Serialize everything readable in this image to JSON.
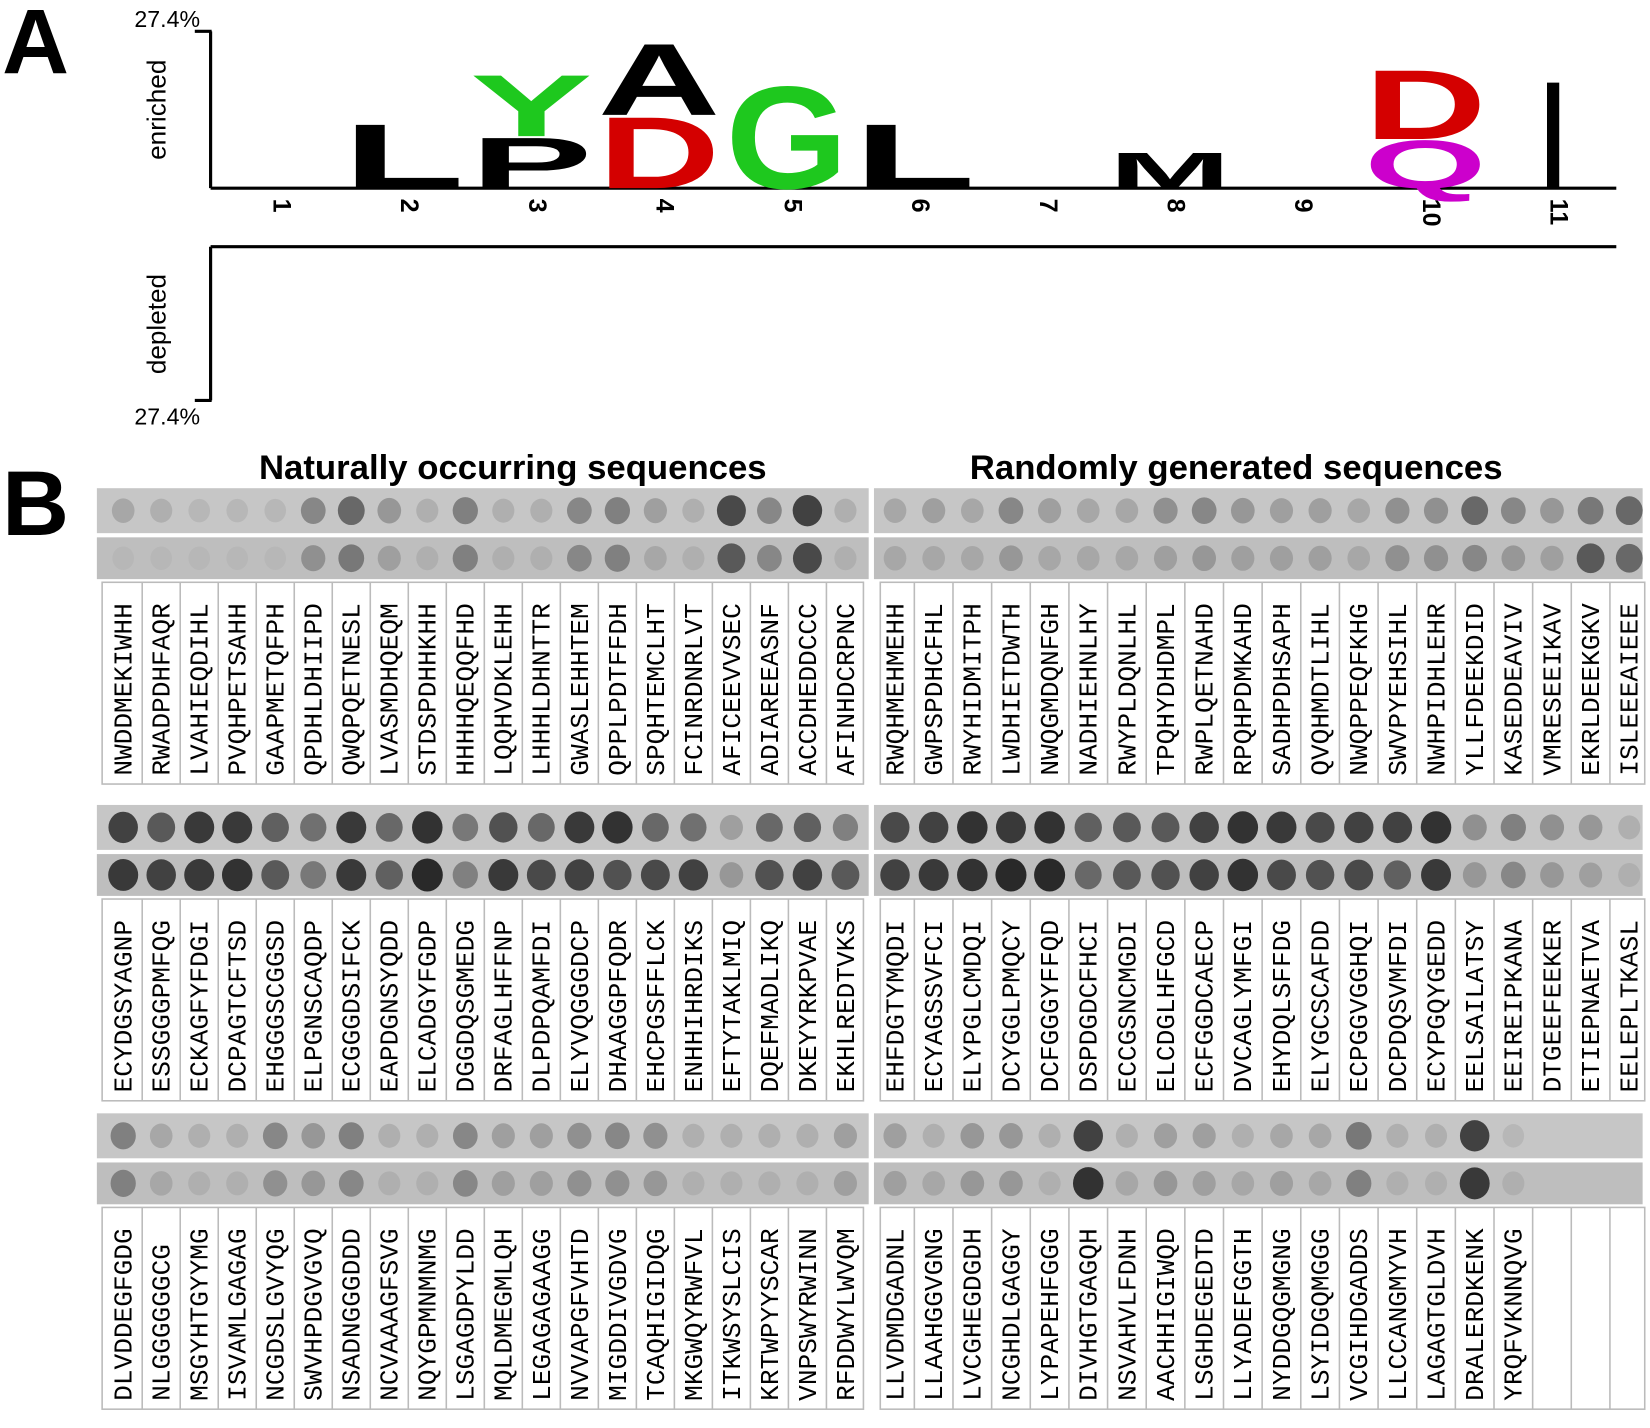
{
  "panel_a": {
    "label": "A",
    "enriched_label": "enriched",
    "depleted_label": "depleted",
    "ylim": [
      0,
      27.4
    ],
    "enriched_tick": {
      "value": 27.4,
      "label": "27.4%"
    },
    "depleted_tick": {
      "value": 27.4,
      "label": "27.4%"
    },
    "positions": [
      "1",
      "2",
      "3",
      "4",
      "5",
      "6",
      "7",
      "8",
      "9",
      "10",
      "11"
    ],
    "stacks": [
      {
        "letters": []
      },
      {
        "letters": [
          {
            "letter": "L",
            "color": "#000000",
            "value": 11.5
          }
        ]
      },
      {
        "letters": [
          {
            "letter": "P",
            "color": "#000000",
            "value": 9.1
          },
          {
            "letter": "Y",
            "color": "#1ec81e",
            "value": 11.0
          }
        ]
      },
      {
        "letters": [
          {
            "letter": "D",
            "color": "#d40000",
            "value": 12.8
          },
          {
            "letter": "A",
            "color": "#000000",
            "value": 12.8
          }
        ]
      },
      {
        "letters": [
          {
            "letter": "G",
            "color": "#1ec81e",
            "value": 18.3
          }
        ]
      },
      {
        "letters": [
          {
            "letter": "L",
            "color": "#000000",
            "value": 11.5
          }
        ]
      },
      {
        "letters": []
      },
      {
        "letters": [
          {
            "letter": "M",
            "color": "#000000",
            "value": 6.4
          }
        ]
      },
      {
        "letters": []
      },
      {
        "letters": [
          {
            "letter": "Q",
            "color": "#cc00cc",
            "value": 8.6
          },
          {
            "letter": "D",
            "color": "#d40000",
            "value": 12.4
          }
        ]
      },
      {
        "letters": [
          {
            "letter": "I",
            "color": "#000000",
            "value": 19.2
          }
        ]
      }
    ]
  },
  "panel_b": {
    "label": "B",
    "titles": [
      "Naturally occurring sequences",
      "Randomly generated sequences"
    ],
    "blots": [
      {
        "sequences": [
          "NWDDMEKIWHH",
          "RWADPDHFAQR",
          "LVAHIEQDIHL",
          "PVQHPETSAHH",
          "GAAPMETQFPH",
          "QPDHLDHIIPD",
          "QWQPQETNESL",
          "LVASMDHQEQM",
          "STDSPDHHKHH",
          "HHHHQEQQFHD",
          "LQQHVDKLEHH",
          "LHHHLDHNTTR",
          "GWASLEHHTEM",
          "QPPLPDTFFDH",
          "SPQHTEMCLHT",
          "FCINRDNRLVT",
          "AFICEEVVSEC",
          "ADIAREEASNF",
          "ACCDHEDDCCC",
          "AFINHDCRPNC"
        ],
        "spots": [
          [
            15,
            10,
            5,
            5,
            5,
            35,
            55,
            25,
            10,
            40,
            10,
            10,
            35,
            40,
            20,
            10,
            75,
            35,
            80,
            10
          ],
          [
            5,
            5,
            5,
            5,
            5,
            30,
            45,
            20,
            10,
            40,
            10,
            10,
            35,
            40,
            15,
            10,
            65,
            35,
            75,
            10
          ]
        ]
      },
      {
        "sequences": [
          "RWQHMEHMEHH",
          "GWPSPDHCFHL",
          "RWYHIDMITPH",
          "LWDHIETDWTH",
          "NWQGMDQNFGH",
          "NADHIEHNLHY",
          "RWYPLDQNLHL",
          "TPQHYDHDMPL",
          "RWPLQETNAHD",
          "RPQHPDMKAHD",
          "SADHPDHSAPH",
          "QVQHMDTLIHL",
          "NWQPPEQFKHG",
          "SWVPYEHSIHL",
          "NWHPIDHLEHR",
          "YLLFDEEKDID",
          "KASEDDEAVIV",
          "VMRESEEIKAV",
          "EKRLDEEKGKV",
          "ISLEEEAIEEE"
        ],
        "spots": [
          [
            15,
            20,
            15,
            35,
            20,
            15,
            15,
            30,
            35,
            25,
            20,
            20,
            15,
            30,
            30,
            55,
            35,
            25,
            45,
            55
          ],
          [
            15,
            15,
            15,
            25,
            15,
            15,
            15,
            20,
            25,
            20,
            20,
            20,
            15,
            30,
            30,
            35,
            25,
            20,
            65,
            55
          ]
        ]
      },
      {
        "sequences": [
          "ECYDGSYAGNP",
          "ESSGGGPMFQG",
          "ECKAGFYFDGI",
          "DCPAGTCFTSD",
          "EHGGGSCGGSD",
          "ELPGNSCAQDP",
          "ECGGGDSIFCK",
          "EAPDGNSYQDD",
          "ELCADGYFGDP",
          "DGGDQSGMEDG",
          "DRFAGLHFFNP",
          "DLPDPQAMFDI",
          "ELYVQGGGDCP",
          "DHAAGGPFQDR",
          "EHCPGSFFLCK",
          "ENHHIHRDIKS",
          "EFTYTAKLMIQ",
          "DQEFMADLIKQ",
          "DKEYYRKPVAE",
          "EKHLREDTVKS"
        ],
        "spots": [
          [
            80,
            65,
            85,
            85,
            60,
            50,
            85,
            55,
            90,
            45,
            70,
            55,
            85,
            90,
            55,
            50,
            20,
            55,
            60,
            40
          ],
          [
            85,
            80,
            85,
            90,
            65,
            45,
            85,
            60,
            95,
            40,
            85,
            75,
            80,
            70,
            75,
            80,
            25,
            70,
            80,
            65
          ]
        ]
      },
      {
        "sequences": [
          "EHFDGTYMQDI",
          "ECYAGSSVFCI",
          "ELYPGLCMDQI",
          "DCYGGLPMQCY",
          "DCFGGGYFFQD",
          "DSPDGDCFHCI",
          "ECCGSNCMGDI",
          "ELCDGLHFGCD",
          "ECFGGDCAECP",
          "DVCAGLYMFGI",
          "EHYDQLSFFDG",
          "ELYGCSCAFDD",
          "ECPGGVGGHQI",
          "DCPDQSVMFDI",
          "ECYPGQYGEDD",
          "EELSAILATSY",
          "EEIREIPKANA",
          "DTGEEFEEKER",
          "ETIEPNAETVA",
          "EELEPLTKASL"
        ],
        "spots": [
          [
            75,
            80,
            90,
            85,
            90,
            60,
            65,
            65,
            80,
            90,
            85,
            75,
            80,
            80,
            90,
            30,
            40,
            30,
            25,
            10
          ],
          [
            80,
            85,
            90,
            95,
            95,
            55,
            65,
            70,
            80,
            90,
            75,
            70,
            75,
            60,
            85,
            25,
            35,
            25,
            20,
            10
          ]
        ]
      },
      {
        "sequences": [
          "DLVDDEGFGDG",
          "NLGGGGGGCG",
          "MSGYHTGYYMG",
          "ISVAMLGAGAG",
          "NCGDSLGVYQG",
          "SWVHPDGVGVQ",
          "NSADNGGGDDD",
          "NCVAAAGFSVG",
          "NQYGPMNMNMG",
          "LSGAGDPYLDD",
          "MQLDMEGMLQH",
          "LEGAGAGAAGG",
          "NVVAPGFVHTD",
          "MIGDDIVGDVG",
          "TCAQHIGIDQG",
          "MKGWQYRWFVL",
          "ITKWSYSLCIS",
          "KRTWPYYSCAR",
          "VNPSWYRWINN",
          "RFDDWYLWVQM"
        ],
        "spots": [
          [
            40,
            15,
            10,
            10,
            35,
            25,
            40,
            10,
            10,
            35,
            20,
            20,
            30,
            35,
            30,
            10,
            10,
            10,
            10,
            20
          ],
          [
            40,
            15,
            10,
            10,
            30,
            25,
            35,
            10,
            10,
            35,
            20,
            20,
            30,
            30,
            25,
            10,
            10,
            10,
            10,
            20
          ]
        ]
      },
      {
        "sequences": [
          "LLVDMDGADNL",
          "LLAAHGGVGNG",
          "LVCGHEGDGDH",
          "NCGHDLGAGGY",
          "LYPAPEHFGGG",
          "DIVHGTGAGQH",
          "NSVAHVLFDNH",
          "AACHHIGIWQD",
          "LSGHDEGEDTD",
          "LLYADEFGGTH",
          "NYDDGQGMGNG",
          "LSYIDGQMGGG",
          "VCGIHDGADDS",
          "LLCCANGMYVH",
          "LAGAGTGLDVH",
          "DRALERDKENK",
          "YRQFVKNNQVG"
        ],
        "spots": [
          [
            20,
            10,
            25,
            25,
            10,
            80,
            10,
            20,
            20,
            10,
            15,
            15,
            45,
            10,
            10,
            80,
            5
          ],
          [
            20,
            15,
            25,
            25,
            10,
            90,
            15,
            25,
            20,
            15,
            20,
            15,
            40,
            10,
            10,
            85,
            10
          ]
        ]
      }
    ]
  }
}
